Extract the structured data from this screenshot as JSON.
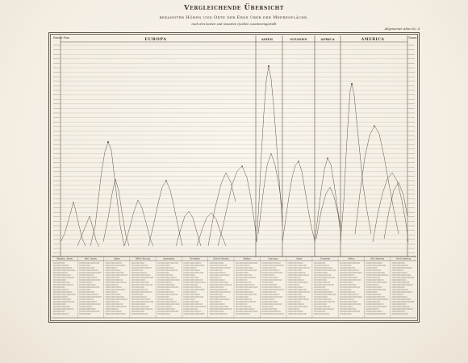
{
  "header": {
    "title": "Vergleichende Übersicht",
    "subtitle": "bekannter Höhen und Orte der Erde über der Meeresfläche,",
    "note": "nach den besten und neuesten Quellen zusammengestellt",
    "plate": "Allgemeiner Atlas No. 4"
  },
  "axis": {
    "left_unit": "Pariser Fuss",
    "right_unit": "Toisen"
  },
  "regions": {
    "labels": [
      "EUROPA",
      "ASIEN",
      "OCEANIEN",
      "AFRICA",
      "AMERICA"
    ]
  },
  "footer_columns": [
    "Skandin. Alpen",
    "Brit. Inseln",
    "Alpen",
    "Mittel Europa",
    "Apenninen",
    "Pyrenäen",
    "Sierra Nevada",
    "Balkan",
    "Caucasus",
    "Asien",
    "Oceanien",
    "Africa",
    "Süd America",
    "Nord America"
  ],
  "colors": {
    "ink": "#3b342b",
    "paper": "#f4efe5",
    "rule": "#8d8374"
  }
}
